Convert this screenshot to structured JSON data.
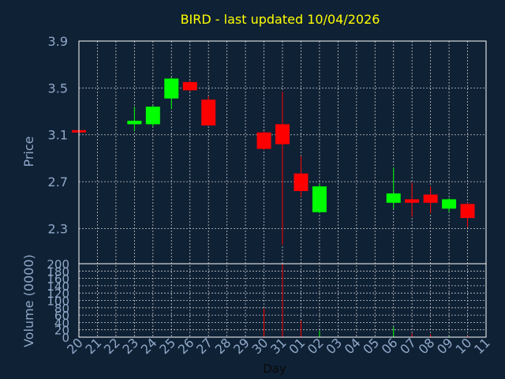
{
  "chart_data": {
    "type": "candlestick",
    "title": "BIRD - last updated 10/04/2026",
    "xlabel": "Day",
    "x_ticks": [
      "20",
      "21",
      "22",
      "23",
      "24",
      "25",
      "26",
      "27",
      "28",
      "29",
      "30",
      "31",
      "01",
      "02",
      "03",
      "04",
      "05",
      "06",
      "07",
      "08",
      "09",
      "10",
      "11"
    ],
    "price": {
      "ylabel": "Price",
      "ylim": [
        2.0,
        3.9
      ],
      "yticks": [
        2.3,
        2.7,
        3.1,
        3.5,
        3.9
      ],
      "ytick_labels": [
        "2.3",
        "2.7",
        "3.1",
        "3.5",
        "3.9"
      ],
      "candles": [
        {
          "x": "20",
          "open": 3.14,
          "high": 3.15,
          "low": 3.13,
          "close": 3.13
        },
        {
          "x": "23",
          "open": 3.19,
          "high": 3.34,
          "low": 3.13,
          "close": 3.22
        },
        {
          "x": "24",
          "open": 3.19,
          "high": 3.35,
          "low": 3.17,
          "close": 3.34
        },
        {
          "x": "25",
          "open": 3.41,
          "high": 3.59,
          "low": 3.32,
          "close": 3.58
        },
        {
          "x": "26",
          "open": 3.55,
          "high": 3.56,
          "low": 3.47,
          "close": 3.48
        },
        {
          "x": "27",
          "open": 3.4,
          "high": 3.43,
          "low": 3.18,
          "close": 3.18
        },
        {
          "x": "30",
          "open": 3.12,
          "high": 3.13,
          "low": 2.97,
          "close": 2.98
        },
        {
          "x": "31",
          "open": 3.19,
          "high": 3.47,
          "low": 2.16,
          "close": 3.02
        },
        {
          "x": "01",
          "open": 2.77,
          "high": 2.92,
          "low": 2.57,
          "close": 2.62
        },
        {
          "x": "02",
          "open": 2.44,
          "high": 2.68,
          "low": 2.43,
          "close": 2.66
        },
        {
          "x": "06",
          "open": 2.52,
          "high": 2.82,
          "low": 2.47,
          "close": 2.6
        },
        {
          "x": "07",
          "open": 2.55,
          "high": 2.69,
          "low": 2.4,
          "close": 2.52
        },
        {
          "x": "08",
          "open": 2.59,
          "high": 2.66,
          "low": 2.43,
          "close": 2.52
        },
        {
          "x": "09",
          "open": 2.47,
          "high": 2.56,
          "low": 2.44,
          "close": 2.55
        },
        {
          "x": "10",
          "open": 2.51,
          "high": 2.52,
          "low": 2.31,
          "close": 2.39
        }
      ]
    },
    "volume": {
      "ylabel": "Volume (0000)",
      "ylim": [
        0,
        200
      ],
      "yticks": [
        0,
        20,
        40,
        60,
        80,
        100,
        120,
        140,
        160,
        180,
        200
      ],
      "ytick_labels": [
        "0",
        "20",
        "40",
        "60",
        "80",
        "100",
        "120",
        "140",
        "160",
        "180",
        "200"
      ],
      "bars": [
        {
          "x": "30",
          "value": 78,
          "direction": "down"
        },
        {
          "x": "31",
          "value": 200,
          "direction": "down"
        },
        {
          "x": "01",
          "value": 45,
          "direction": "down"
        },
        {
          "x": "02",
          "value": 18,
          "direction": "up"
        },
        {
          "x": "06",
          "value": 28,
          "direction": "up"
        },
        {
          "x": "07",
          "value": 10,
          "direction": "down"
        },
        {
          "x": "08",
          "value": 8,
          "direction": "down"
        },
        {
          "x": "09",
          "value": 3,
          "direction": "up"
        },
        {
          "x": "10",
          "value": 4,
          "direction": "down"
        }
      ]
    },
    "grid": true,
    "colors": {
      "background": "#0f2135",
      "plot_background": "#0f2135",
      "frame": "#ffffff",
      "grid": "#c8c8c8",
      "text": "#8fa9c8",
      "title": "#ffff00",
      "up": "#00ff00",
      "down": "#ff0000"
    }
  }
}
